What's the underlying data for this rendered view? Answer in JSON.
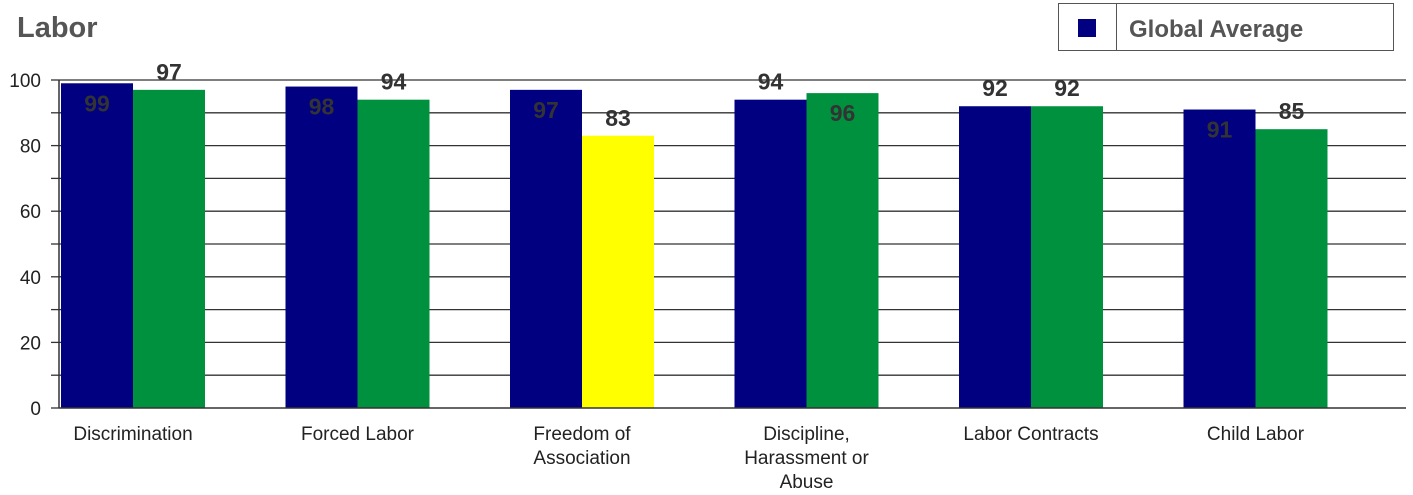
{
  "chart_data": {
    "type": "bar",
    "title": "Labor",
    "categories": [
      "Discrimination",
      "Forced Labor",
      "Freedom of Association",
      "Discipline, Harassment or Abuse",
      "Labor Contracts",
      "Child Labor"
    ],
    "category_lines": [
      [
        "Discrimination"
      ],
      [
        "Forced Labor"
      ],
      [
        "Freedom of",
        "Association"
      ],
      [
        "Discipline,",
        "Harassment or",
        "Abuse"
      ],
      [
        "Labor Contracts"
      ],
      [
        "Child Labor"
      ]
    ],
    "series": [
      {
        "name": "Global Average",
        "values": [
          99,
          98,
          97,
          94,
          92,
          91
        ],
        "color": "#000080"
      },
      {
        "values": [
          97,
          94,
          83,
          96,
          92,
          85
        ],
        "colors": [
          "#00913F",
          "#00913F",
          "#FFFF00",
          "#00913F",
          "#00913F",
          "#00913F"
        ]
      }
    ],
    "ylim": [
      0,
      100
    ],
    "yticks": [
      0,
      20,
      40,
      60,
      80,
      100
    ],
    "grid": true,
    "legend_position": "top-right",
    "xlabel": "",
    "ylabel": ""
  },
  "legend": {
    "label": "Global Average",
    "color": "#000080"
  }
}
